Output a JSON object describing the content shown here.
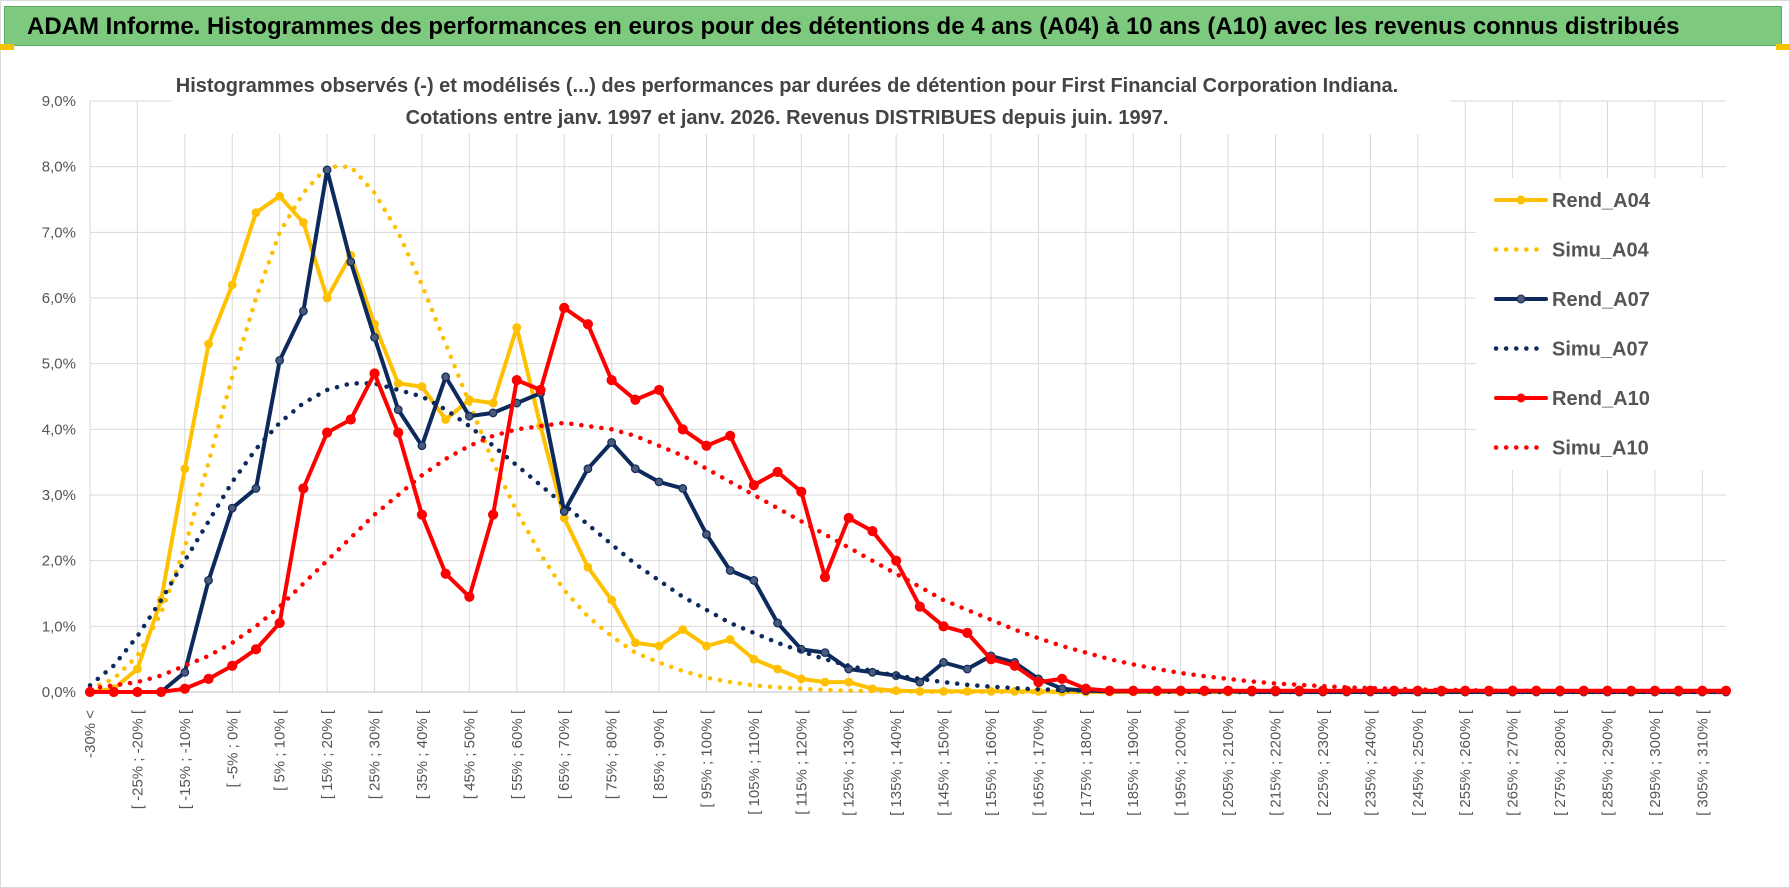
{
  "header": {
    "title": "ADAM Informe. Histogrammes des performances en euros pour des détentions de 4 ans (A04) à 10 ans (A10) avec les revenus connus distribués"
  },
  "colors": {
    "banner": "#7dc97d",
    "A04": "#ffc000",
    "A07": "#0d2a5c",
    "A10": "#ff0000",
    "grid": "#d9d9d9"
  },
  "chart_data": {
    "type": "line",
    "title": "Histogrammes observés (-) et modélisés (...) des performances par durées de détention pour First Financial Corporation Indiana.",
    "subtitle": "Cotations entre janv. 1997 et janv. 2026. Revenus DISTRIBUES depuis juin. 1997.",
    "ylim": [
      0,
      9
    ],
    "y_ticks": [
      "0,0%",
      "1,0%",
      "2,0%",
      "3,0%",
      "4,0%",
      "5,0%",
      "6,0%",
      "7,0%",
      "8,0%",
      "9,0%"
    ],
    "grid": true,
    "legend_position": "right",
    "x_labels": [
      "-30% <",
      "[ -25% ; -20% [",
      "[ -15% ; -10% [",
      "[ -5% ; 0% [",
      "[ 5% ; 10% [",
      "[ 15% ; 20% [",
      "[ 25% ; 30% [",
      "[ 35% ; 40% [",
      "[ 45% ; 50% [",
      "[ 55% ; 60% [",
      "[ 65% ; 70% [",
      "[ 75% ; 80% [",
      "[ 85% ; 90% [",
      "[ 95% ; 100% [",
      "[ 105% ; 110% [",
      "[ 115% ; 120% [",
      "[ 125% ; 130% [",
      "[ 135% ; 140% [",
      "[ 145% ; 150% [",
      "[ 155% ; 160% [",
      "[ 165% ; 170% [",
      "[ 175% ; 180% [",
      "[ 185% ; 190% [",
      "[ 195% ; 200% [",
      "[ 205% ; 210% [",
      "[ 215% ; 220% [",
      "[ 225% ; 230% [",
      "[ 235% ; 240% [",
      "[ 245% ; 250% [",
      "[ 255% ; 260% [",
      "[ 265% ; 270% [",
      "[ 275% ; 280% [",
      "[ 285% ; 290% [",
      "[ 295% ; 300% [",
      "[ 305% ; 310% ["
    ],
    "series": [
      {
        "name": "Rend_A04",
        "style": "solid",
        "color": "#ffc000",
        "markers": true,
        "values": [
          0,
          0.05,
          0.35,
          1.4,
          3.4,
          5.3,
          6.2,
          7.3,
          7.55,
          7.15,
          6.0,
          6.65,
          5.6,
          4.7,
          4.65,
          4.15,
          4.45,
          4.4,
          5.55,
          4.05,
          2.65,
          1.9,
          1.4,
          0.75,
          0.7,
          0.95,
          0.7,
          0.8,
          0.5,
          0.35,
          0.2,
          0.15,
          0.15,
          0.05,
          0.02,
          0.01,
          0.01,
          0.01,
          0.01,
          0.01,
          0.01,
          0,
          0,
          0,
          0,
          0,
          0,
          0,
          0,
          0,
          0,
          0,
          0,
          0,
          0,
          0,
          0,
          0,
          0,
          0,
          0,
          0,
          0,
          0,
          0,
          0,
          0,
          0,
          0,
          0
        ]
      },
      {
        "name": "Simu_A04",
        "style": "dotted",
        "color": "#ffc000",
        "markers": false,
        "values": [
          0.05,
          0.2,
          0.55,
          1.2,
          2.2,
          3.5,
          4.8,
          6.0,
          7.0,
          7.6,
          8.0,
          8.0,
          7.6,
          7.0,
          6.2,
          5.3,
          4.4,
          3.5,
          2.75,
          2.1,
          1.55,
          1.15,
          0.85,
          0.6,
          0.45,
          0.32,
          0.22,
          0.15,
          0.1,
          0.07,
          0.05,
          0.03,
          0.02,
          0.015,
          0.01,
          0.005,
          0,
          0,
          0,
          0,
          0,
          0,
          0,
          0,
          0,
          0,
          0,
          0,
          0,
          0,
          0,
          0,
          0,
          0,
          0,
          0,
          0,
          0,
          0,
          0,
          0,
          0,
          0,
          0,
          0,
          0,
          0,
          0,
          0,
          0
        ]
      },
      {
        "name": "Rend_A07",
        "style": "solid",
        "color": "#0d2a5c",
        "markers": true,
        "values": [
          0,
          0,
          0,
          0,
          0.3,
          1.7,
          2.8,
          3.1,
          5.05,
          5.8,
          7.95,
          6.55,
          5.4,
          4.3,
          3.75,
          4.8,
          4.2,
          4.25,
          4.4,
          4.55,
          2.75,
          3.4,
          3.8,
          3.4,
          3.2,
          3.1,
          2.4,
          1.85,
          1.7,
          1.05,
          0.65,
          0.6,
          0.35,
          0.3,
          0.25,
          0.15,
          0.45,
          0.35,
          0.55,
          0.45,
          0.2,
          0.05,
          0.02,
          0.01,
          0.01,
          0.01,
          0.01,
          0.01,
          0.01,
          0,
          0,
          0,
          0,
          0,
          0,
          0,
          0,
          0,
          0,
          0,
          0,
          0,
          0,
          0,
          0,
          0,
          0,
          0,
          0,
          0
        ]
      },
      {
        "name": "Simu_A07",
        "style": "dotted",
        "color": "#0d2a5c",
        "markers": false,
        "values": [
          0.1,
          0.4,
          0.85,
          1.4,
          2.0,
          2.6,
          3.2,
          3.7,
          4.1,
          4.4,
          4.6,
          4.7,
          4.7,
          4.6,
          4.5,
          4.3,
          4.05,
          3.75,
          3.45,
          3.15,
          2.85,
          2.55,
          2.25,
          1.95,
          1.7,
          1.45,
          1.25,
          1.05,
          0.9,
          0.75,
          0.62,
          0.5,
          0.4,
          0.32,
          0.25,
          0.2,
          0.15,
          0.11,
          0.08,
          0.06,
          0.04,
          0.03,
          0.02,
          0.015,
          0.01,
          0.005,
          0.003,
          0,
          0,
          0,
          0,
          0,
          0,
          0,
          0,
          0,
          0,
          0,
          0,
          0,
          0,
          0,
          0,
          0,
          0,
          0,
          0,
          0,
          0,
          0
        ]
      },
      {
        "name": "Rend_A10",
        "style": "solid",
        "color": "#ff0000",
        "markers": true,
        "values": [
          0,
          0,
          0,
          0,
          0.05,
          0.2,
          0.4,
          0.65,
          1.05,
          3.1,
          3.95,
          4.15,
          4.85,
          3.95,
          2.7,
          1.8,
          1.45,
          2.7,
          4.75,
          4.6,
          5.85,
          5.6,
          4.75,
          4.45,
          4.6,
          4.0,
          3.75,
          3.9,
          3.15,
          3.35,
          3.05,
          1.75,
          2.65,
          2.45,
          2.0,
          1.3,
          1.0,
          0.9,
          0.5,
          0.4,
          0.15,
          0.2,
          0.05,
          0.02,
          0.02,
          0.02,
          0.02,
          0.02,
          0.02,
          0.02,
          0.02,
          0.02,
          0.02,
          0.02,
          0.02,
          0.02,
          0.02,
          0.02,
          0.02,
          0.02,
          0.02,
          0.02,
          0.02,
          0.02,
          0.02,
          0.02,
          0.02,
          0.02,
          0.02,
          0.02
        ]
      },
      {
        "name": "Simu_A10",
        "style": "dotted",
        "color": "#ff0000",
        "markers": false,
        "values": [
          0.05,
          0.1,
          0.15,
          0.25,
          0.4,
          0.55,
          0.75,
          1.0,
          1.3,
          1.65,
          2.0,
          2.35,
          2.7,
          3.0,
          3.3,
          3.55,
          3.75,
          3.9,
          4.0,
          4.05,
          4.1,
          4.05,
          4.0,
          3.9,
          3.75,
          3.6,
          3.4,
          3.2,
          3.0,
          2.8,
          2.6,
          2.4,
          2.2,
          2.0,
          1.8,
          1.6,
          1.4,
          1.25,
          1.1,
          0.95,
          0.82,
          0.7,
          0.6,
          0.5,
          0.42,
          0.35,
          0.29,
          0.24,
          0.2,
          0.16,
          0.13,
          0.11,
          0.09,
          0.07,
          0.06,
          0.05,
          0.04,
          0.03,
          0.03,
          0.02,
          0.02,
          0.02,
          0.01,
          0.01,
          0.01,
          0.01,
          0.01,
          0.01,
          0,
          0
        ]
      }
    ]
  }
}
